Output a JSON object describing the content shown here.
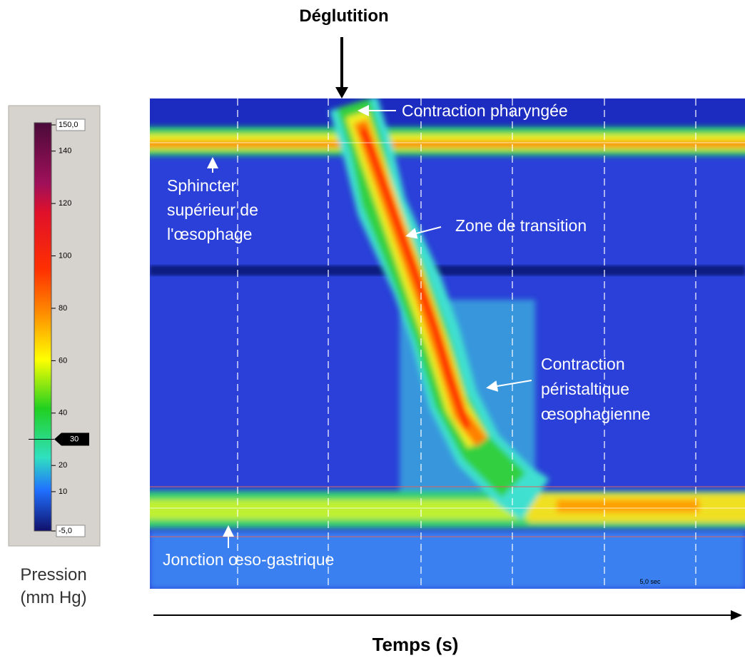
{
  "title": "Déglutition",
  "x_label": "Temps (s)",
  "colorbar": {
    "label": [
      "Pression",
      "(mm Hg)"
    ],
    "ticks": [
      {
        "value": 150,
        "label": "150,0"
      },
      140,
      120,
      100,
      80,
      60,
      40,
      20,
      10,
      {
        "value": -5,
        "label": "-5,0"
      }
    ],
    "threshold": 30
  },
  "scale_bar": "5,0 sec",
  "annotations": {
    "pharyngeal": "Contraction pharyngée",
    "ues": [
      "Sphincter",
      "supérieur de",
      "l'œsophage"
    ],
    "transition": "Zone de transition",
    "peristaltic": [
      "Contraction",
      "péristaltique",
      "œsophagienne"
    ],
    "egj": "Jonction œso-gastrique"
  }
}
